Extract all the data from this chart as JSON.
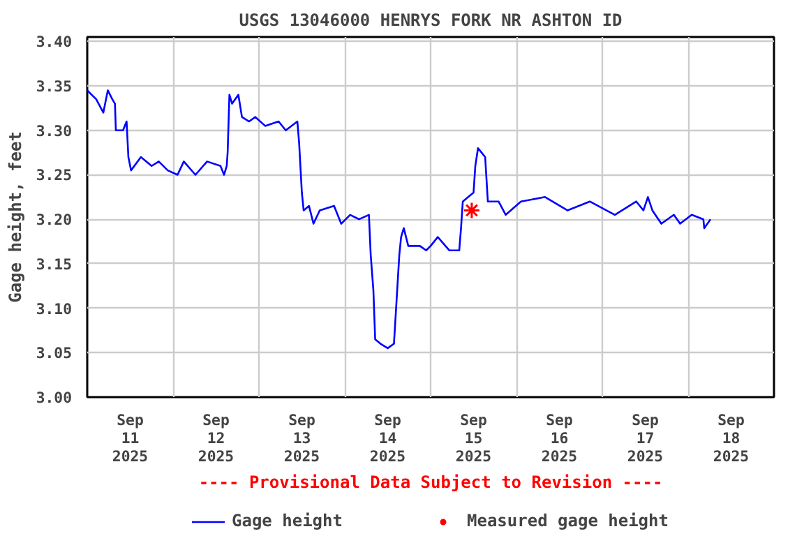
{
  "chart_data": {
    "type": "line",
    "title": "USGS 13046000 HENRYS FORK NR ASHTON ID",
    "ylabel": "Gage height, feet",
    "annotations": [
      "---- Provisional Data Subject to Revision ----"
    ],
    "xlim": [
      "2025-09-11T00:00",
      "2025-09-19T00:00"
    ],
    "xticks": [
      {
        "value": "2025-09-11T00:00",
        "label": null
      },
      {
        "value": "2025-09-11T12:00",
        "label": "Sep\n11\n2025"
      },
      {
        "value": "2025-09-12T00:00",
        "label": null
      },
      {
        "value": "2025-09-12T12:00",
        "label": "Sep\n12\n2025"
      },
      {
        "value": "2025-09-13T00:00",
        "label": null
      },
      {
        "value": "2025-09-13T12:00",
        "label": "Sep\n13\n2025"
      },
      {
        "value": "2025-09-14T00:00",
        "label": null
      },
      {
        "value": "2025-09-14T12:00",
        "label": "Sep\n14\n2025"
      },
      {
        "value": "2025-09-15T00:00",
        "label": null
      },
      {
        "value": "2025-09-15T12:00",
        "label": "Sep\n15\n2025"
      },
      {
        "value": "2025-09-16T00:00",
        "label": null
      },
      {
        "value": "2025-09-16T12:00",
        "label": "Sep\n16\n2025"
      },
      {
        "value": "2025-09-17T00:00",
        "label": null
      },
      {
        "value": "2025-09-17T12:00",
        "label": "Sep\n17\n2025"
      },
      {
        "value": "2025-09-18T00:00",
        "label": null
      },
      {
        "value": "2025-09-18T12:00",
        "label": "Sep\n18\n2025"
      },
      {
        "value": "2025-09-19T00:00",
        "label": null
      }
    ],
    "ylim": [
      3.0,
      3.405
    ],
    "yticks": [
      {
        "value": 3.0,
        "label": "3.00"
      },
      {
        "value": 3.05,
        "label": "3.05"
      },
      {
        "value": 3.1,
        "label": "3.10"
      },
      {
        "value": 3.15,
        "label": "3.15"
      },
      {
        "value": 3.2,
        "label": "3.20"
      },
      {
        "value": 3.25,
        "label": "3.25"
      },
      {
        "value": 3.3,
        "label": "3.30"
      },
      {
        "value": 3.35,
        "label": "3.35"
      },
      {
        "value": 3.4,
        "label": "3.40"
      }
    ],
    "grid": true,
    "legend": "bottom",
    "series": [
      {
        "name": "Gage height",
        "type": "line",
        "color": "#0000ff",
        "marker": "none",
        "line_style": "solid",
        "x": [
          "2025-09-11T00:00",
          "2025-09-11T01:15",
          "2025-09-11T02:30",
          "2025-09-11T04:30",
          "2025-09-11T05:45",
          "2025-09-11T07:00",
          "2025-09-11T07:45",
          "2025-09-11T08:00",
          "2025-09-11T10:00",
          "2025-09-11T11:00",
          "2025-09-11T11:30",
          "2025-09-11T12:15",
          "2025-09-11T15:00",
          "2025-09-11T18:00",
          "2025-09-11T20:00",
          "2025-09-11T22:30",
          "2025-09-12T01:15",
          "2025-09-12T03:00",
          "2025-09-12T06:15",
          "2025-09-12T09:30",
          "2025-09-12T13:15",
          "2025-09-12T14:15",
          "2025-09-12T15:00",
          "2025-09-12T15:15",
          "2025-09-12T15:45",
          "2025-09-12T16:30",
          "2025-09-12T18:15",
          "2025-09-12T19:15",
          "2025-09-12T21:15",
          "2025-09-12T23:00",
          "2025-09-13T01:45",
          "2025-09-13T05:30",
          "2025-09-13T07:30",
          "2025-09-13T10:45",
          "2025-09-13T11:15",
          "2025-09-13T12:00",
          "2025-09-13T12:30",
          "2025-09-13T14:00",
          "2025-09-13T15:15",
          "2025-09-13T17:00",
          "2025-09-13T21:00",
          "2025-09-13T23:00",
          "2025-09-14T01:30",
          "2025-09-14T04:00",
          "2025-09-14T06:45",
          "2025-09-14T07:15",
          "2025-09-14T08:00",
          "2025-09-14T08:30",
          "2025-09-14T10:00",
          "2025-09-14T12:00",
          "2025-09-14T13:45",
          "2025-09-14T14:30",
          "2025-09-14T15:15",
          "2025-09-14T15:45",
          "2025-09-14T16:30",
          "2025-09-14T17:45",
          "2025-09-14T21:00",
          "2025-09-14T22:45",
          "2025-09-15T00:00",
          "2025-09-15T02:00",
          "2025-09-15T05:15",
          "2025-09-15T08:00",
          "2025-09-15T08:30",
          "2025-09-15T09:00",
          "2025-09-15T10:30",
          "2025-09-15T12:00",
          "2025-09-15T12:30",
          "2025-09-15T13:15",
          "2025-09-15T14:15",
          "2025-09-15T15:15",
          "2025-09-15T16:00",
          "2025-09-15T19:00",
          "2025-09-15T21:00",
          "2025-09-16T01:15",
          "2025-09-16T08:00",
          "2025-09-16T14:15",
          "2025-09-16T20:30",
          "2025-09-17T03:30",
          "2025-09-17T09:30",
          "2025-09-17T11:30",
          "2025-09-17T12:45",
          "2025-09-17T14:00",
          "2025-09-17T16:30",
          "2025-09-17T20:00",
          "2025-09-17T21:45",
          "2025-09-18T01:00",
          "2025-09-18T04:15",
          "2025-09-18T04:30",
          "2025-09-18T06:15"
        ],
        "values": [
          3.345,
          3.34,
          3.335,
          3.32,
          3.345,
          3.335,
          3.33,
          3.3,
          3.3,
          3.31,
          3.27,
          3.255,
          3.27,
          3.26,
          3.265,
          3.255,
          3.25,
          3.265,
          3.25,
          3.265,
          3.26,
          3.25,
          3.26,
          3.275,
          3.34,
          3.33,
          3.34,
          3.315,
          3.31,
          3.315,
          3.305,
          3.31,
          3.3,
          3.31,
          3.285,
          3.23,
          3.21,
          3.215,
          3.195,
          3.21,
          3.215,
          3.195,
          3.205,
          3.2,
          3.205,
          3.16,
          3.12,
          3.065,
          3.06,
          3.055,
          3.06,
          3.11,
          3.16,
          3.18,
          3.19,
          3.17,
          3.17,
          3.165,
          3.17,
          3.18,
          3.165,
          3.165,
          3.19,
          3.22,
          3.225,
          3.23,
          3.26,
          3.28,
          3.275,
          3.27,
          3.22,
          3.22,
          3.205,
          3.22,
          3.225,
          3.21,
          3.22,
          3.205,
          3.22,
          3.21,
          3.225,
          3.21,
          3.195,
          3.205,
          3.195,
          3.205,
          3.2,
          3.19,
          3.2
        ]
      },
      {
        "name": "Measured gage height",
        "type": "scatter",
        "color": "#ff0000",
        "marker": "cross",
        "x": [
          "2025-09-15T11:30"
        ],
        "values": [
          3.21
        ]
      }
    ]
  }
}
